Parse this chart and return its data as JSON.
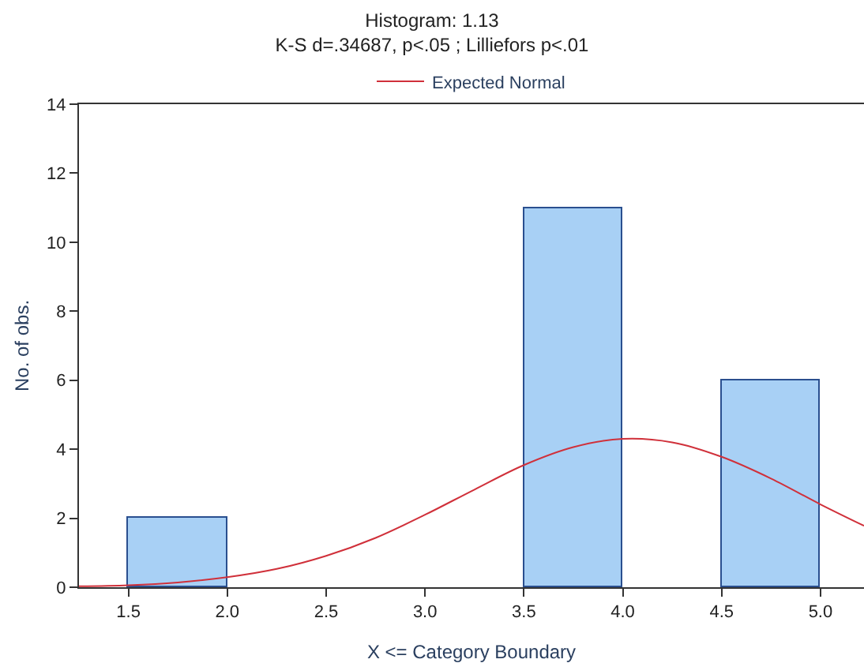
{
  "chart_data": {
    "type": "histogram",
    "title": "Histogram: 1.13",
    "subtitle": "K-S d=.34687, p<.05 ; Lilliefors p<.01",
    "xlabel": "X <= Category Boundary",
    "ylabel": "No. of obs.",
    "bins": [
      1.5,
      2.0,
      2.5,
      3.0,
      3.5,
      4.0,
      4.5,
      5.0
    ],
    "values": [
      2,
      0,
      0,
      0,
      11,
      0,
      6
    ],
    "color": "#a8d0f5",
    "series": [
      {
        "name": "Expected Normal",
        "type": "line",
        "color": "#d0303a",
        "x": [
          1.25,
          1.5,
          1.75,
          2.0,
          2.25,
          2.5,
          2.75,
          3.0,
          3.25,
          3.5,
          3.75,
          4.0,
          4.25,
          4.5,
          4.75,
          5.0,
          5.22
        ],
        "values": [
          0.03,
          0.06,
          0.14,
          0.29,
          0.53,
          0.91,
          1.43,
          2.1,
          2.83,
          3.54,
          4.06,
          4.3,
          4.2,
          3.78,
          3.15,
          2.4,
          1.78
        ]
      }
    ],
    "xlim": [
      1.25,
      5.22
    ],
    "xticks": [
      1.5,
      {
        "value": 2,
        "label": "2.0"
      },
      2.5,
      {
        "value": 3,
        "label": "3.0"
      },
      3.5,
      {
        "value": 4,
        "label": "4.0"
      },
      4.5,
      {
        "value": 5,
        "label": "5.0"
      }
    ],
    "ylim": [
      0,
      14
    ],
    "yticks": [
      0,
      2,
      4,
      6,
      8,
      10,
      12,
      14
    ],
    "grid": false,
    "legend": "top"
  }
}
